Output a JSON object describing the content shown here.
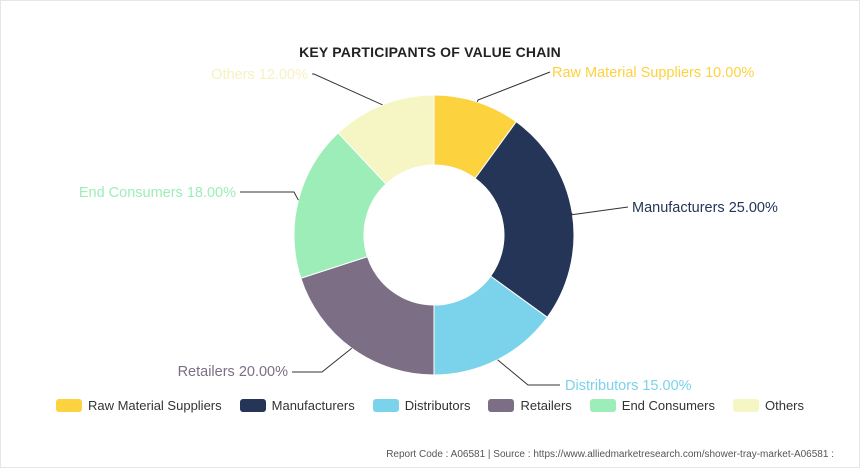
{
  "chart_data": {
    "type": "pie",
    "variant": "donut",
    "title": "KEY PARTICIPANTS OF VALUE CHAIN",
    "slices": [
      {
        "name": "Raw Material Suppliers",
        "value": 10.0,
        "label": "Raw Material Suppliers 10.00%",
        "color": "#FDD23F"
      },
      {
        "name": "Manufacturers",
        "value": 25.0,
        "label": "Manufacturers 25.00%",
        "color": "#243558"
      },
      {
        "name": "Distributors",
        "value": 15.0,
        "label": "Distributors 15.00%",
        "color": "#7AD3EA"
      },
      {
        "name": "Retailers",
        "value": 20.0,
        "label": "Retailers 20.00%",
        "color": "#7C6E85"
      },
      {
        "name": "End Consumers",
        "value": 18.0,
        "label": "End Consumers 18.00%",
        "color": "#9DEDB8"
      },
      {
        "name": "Others",
        "value": 12.0,
        "label": "Others 12.00%",
        "color": "#F6F6C4"
      }
    ],
    "legend_position": "bottom"
  },
  "footer": "Report Code : A06581  |  Source : https://www.alliedmarketresearch.com/shower-tray-market-A06581 :"
}
